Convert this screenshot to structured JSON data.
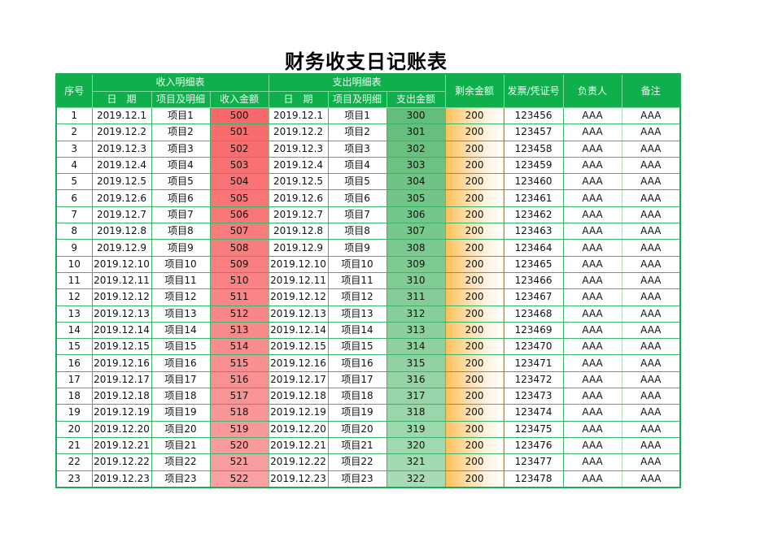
{
  "title": "财务收支日记账表",
  "colors": {
    "header_bg": "#0fb04c",
    "header_text": "#eafff0",
    "border": "#3bb36b",
    "income_scale_top": "#f8696b",
    "income_scale_bottom": "#f9a0a2",
    "expense_scale_top": "#63be7b",
    "expense_scale_bottom": "#a6dbb4",
    "remaining_bar_start": "#fdbf56",
    "remaining_bar_end": "#ffffff"
  },
  "header": {
    "seq": "序号",
    "income_group": "收入明细表",
    "expense_group": "支出明细表",
    "remaining": "剩余金额",
    "invoice": "发票/凭证号",
    "owner": "负责人",
    "note": "备注",
    "income_date": "日　期",
    "income_item": "项目及明细",
    "income_amount": "收入金额",
    "expense_date": "日　期",
    "expense_item": "项目及明细",
    "expense_amount": "支出金额"
  },
  "rows": [
    {
      "seq": "1",
      "income_date": "2019.12.1",
      "income_item": "项目1",
      "income_amount": "500",
      "expense_date": "2019.12.1",
      "expense_item": "项目1",
      "expense_amount": "300",
      "remaining": "200",
      "invoice": "123456",
      "owner": "AAA",
      "note": "AAA"
    },
    {
      "seq": "2",
      "income_date": "2019.12.2",
      "income_item": "项目2",
      "income_amount": "501",
      "expense_date": "2019.12.2",
      "expense_item": "项目2",
      "expense_amount": "301",
      "remaining": "200",
      "invoice": "123457",
      "owner": "AAA",
      "note": "AAA"
    },
    {
      "seq": "3",
      "income_date": "2019.12.3",
      "income_item": "项目3",
      "income_amount": "502",
      "expense_date": "2019.12.3",
      "expense_item": "项目3",
      "expense_amount": "302",
      "remaining": "200",
      "invoice": "123458",
      "owner": "AAA",
      "note": "AAA"
    },
    {
      "seq": "4",
      "income_date": "2019.12.4",
      "income_item": "项目4",
      "income_amount": "503",
      "expense_date": "2019.12.4",
      "expense_item": "项目4",
      "expense_amount": "303",
      "remaining": "200",
      "invoice": "123459",
      "owner": "AAA",
      "note": "AAA"
    },
    {
      "seq": "5",
      "income_date": "2019.12.5",
      "income_item": "项目5",
      "income_amount": "504",
      "expense_date": "2019.12.5",
      "expense_item": "项目5",
      "expense_amount": "304",
      "remaining": "200",
      "invoice": "123460",
      "owner": "AAA",
      "note": "AAA"
    },
    {
      "seq": "6",
      "income_date": "2019.12.6",
      "income_item": "项目6",
      "income_amount": "505",
      "expense_date": "2019.12.6",
      "expense_item": "项目6",
      "expense_amount": "305",
      "remaining": "200",
      "invoice": "123461",
      "owner": "AAA",
      "note": "AAA"
    },
    {
      "seq": "7",
      "income_date": "2019.12.7",
      "income_item": "项目7",
      "income_amount": "506",
      "expense_date": "2019.12.7",
      "expense_item": "项目7",
      "expense_amount": "306",
      "remaining": "200",
      "invoice": "123462",
      "owner": "AAA",
      "note": "AAA"
    },
    {
      "seq": "8",
      "income_date": "2019.12.8",
      "income_item": "项目8",
      "income_amount": "507",
      "expense_date": "2019.12.8",
      "expense_item": "项目8",
      "expense_amount": "307",
      "remaining": "200",
      "invoice": "123463",
      "owner": "AAA",
      "note": "AAA"
    },
    {
      "seq": "9",
      "income_date": "2019.12.9",
      "income_item": "项目9",
      "income_amount": "508",
      "expense_date": "2019.12.9",
      "expense_item": "项目9",
      "expense_amount": "308",
      "remaining": "200",
      "invoice": "123464",
      "owner": "AAA",
      "note": "AAA"
    },
    {
      "seq": "10",
      "income_date": "2019.12.10",
      "income_item": "项目10",
      "income_amount": "509",
      "expense_date": "2019.12.10",
      "expense_item": "项目10",
      "expense_amount": "309",
      "remaining": "200",
      "invoice": "123465",
      "owner": "AAA",
      "note": "AAA"
    },
    {
      "seq": "11",
      "income_date": "2019.12.11",
      "income_item": "项目11",
      "income_amount": "510",
      "expense_date": "2019.12.11",
      "expense_item": "项目11",
      "expense_amount": "310",
      "remaining": "200",
      "invoice": "123466",
      "owner": "AAA",
      "note": "AAA"
    },
    {
      "seq": "12",
      "income_date": "2019.12.12",
      "income_item": "项目12",
      "income_amount": "511",
      "expense_date": "2019.12.12",
      "expense_item": "项目12",
      "expense_amount": "311",
      "remaining": "200",
      "invoice": "123467",
      "owner": "AAA",
      "note": "AAA"
    },
    {
      "seq": "13",
      "income_date": "2019.12.13",
      "income_item": "项目13",
      "income_amount": "512",
      "expense_date": "2019.12.13",
      "expense_item": "项目13",
      "expense_amount": "312",
      "remaining": "200",
      "invoice": "123468",
      "owner": "AAA",
      "note": "AAA"
    },
    {
      "seq": "14",
      "income_date": "2019.12.14",
      "income_item": "项目14",
      "income_amount": "513",
      "expense_date": "2019.12.14",
      "expense_item": "项目14",
      "expense_amount": "313",
      "remaining": "200",
      "invoice": "123469",
      "owner": "AAA",
      "note": "AAA"
    },
    {
      "seq": "15",
      "income_date": "2019.12.15",
      "income_item": "项目15",
      "income_amount": "514",
      "expense_date": "2019.12.15",
      "expense_item": "项目15",
      "expense_amount": "314",
      "remaining": "200",
      "invoice": "123470",
      "owner": "AAA",
      "note": "AAA"
    },
    {
      "seq": "16",
      "income_date": "2019.12.16",
      "income_item": "项目16",
      "income_amount": "515",
      "expense_date": "2019.12.16",
      "expense_item": "项目16",
      "expense_amount": "315",
      "remaining": "200",
      "invoice": "123471",
      "owner": "AAA",
      "note": "AAA"
    },
    {
      "seq": "17",
      "income_date": "2019.12.17",
      "income_item": "项目17",
      "income_amount": "516",
      "expense_date": "2019.12.17",
      "expense_item": "项目17",
      "expense_amount": "316",
      "remaining": "200",
      "invoice": "123472",
      "owner": "AAA",
      "note": "AAA"
    },
    {
      "seq": "18",
      "income_date": "2019.12.18",
      "income_item": "项目18",
      "income_amount": "517",
      "expense_date": "2019.12.18",
      "expense_item": "项目18",
      "expense_amount": "317",
      "remaining": "200",
      "invoice": "123473",
      "owner": "AAA",
      "note": "AAA"
    },
    {
      "seq": "19",
      "income_date": "2019.12.19",
      "income_item": "项目19",
      "income_amount": "518",
      "expense_date": "2019.12.19",
      "expense_item": "项目19",
      "expense_amount": "318",
      "remaining": "200",
      "invoice": "123474",
      "owner": "AAA",
      "note": "AAA"
    },
    {
      "seq": "20",
      "income_date": "2019.12.20",
      "income_item": "项目20",
      "income_amount": "519",
      "expense_date": "2019.12.20",
      "expense_item": "项目20",
      "expense_amount": "319",
      "remaining": "200",
      "invoice": "123475",
      "owner": "AAA",
      "note": "AAA"
    },
    {
      "seq": "21",
      "income_date": "2019.12.21",
      "income_item": "项目21",
      "income_amount": "520",
      "expense_date": "2019.12.21",
      "expense_item": "项目21",
      "expense_amount": "320",
      "remaining": "200",
      "invoice": "123476",
      "owner": "AAA",
      "note": "AAA"
    },
    {
      "seq": "22",
      "income_date": "2019.12.22",
      "income_item": "项目22",
      "income_amount": "521",
      "expense_date": "2019.12.22",
      "expense_item": "项目22",
      "expense_amount": "321",
      "remaining": "200",
      "invoice": "123477",
      "owner": "AAA",
      "note": "AAA"
    },
    {
      "seq": "23",
      "income_date": "2019.12.23",
      "income_item": "项目23",
      "income_amount": "522",
      "expense_date": "2019.12.23",
      "expense_item": "项目23",
      "expense_amount": "322",
      "remaining": "200",
      "invoice": "123478",
      "owner": "AAA",
      "note": "AAA"
    }
  ]
}
